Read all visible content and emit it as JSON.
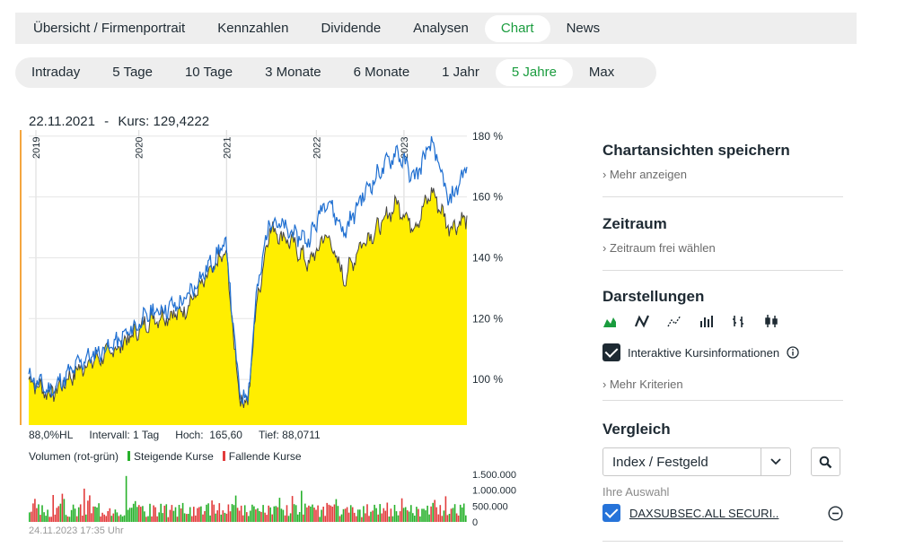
{
  "nav_tabs": [
    "Übersicht / Firmenportrait",
    "Kennzahlen",
    "Dividende",
    "Analysen",
    "Chart",
    "News"
  ],
  "active_nav_tab": "Chart",
  "range_tabs": [
    "Intraday",
    "5 Tage",
    "10 Tage",
    "3 Monate",
    "6 Monate",
    "1 Jahr",
    "5 Jahre",
    "Max"
  ],
  "active_range_tab": "5 Jahre",
  "chart_header": {
    "date": "22.11.2021",
    "separator": "-",
    "kurs_label": "Kurs: 129,4222"
  },
  "chart_data": [
    {
      "type": "area",
      "title": "22.11.2021 - Kurs: 129,4222",
      "year_labels": [
        "2019",
        "2020",
        "2021",
        "2022",
        "2023"
      ],
      "y_tick_labels": [
        "180 %",
        "160 %",
        "140 %",
        "120 %",
        "100 %"
      ],
      "ylim": [
        85,
        182
      ],
      "series": [
        {
          "name": "Kurs (yellow area)",
          "color": "#ffee00",
          "line_color": "#444444",
          "x": [
            0,
            5,
            12,
            20,
            28,
            35,
            40,
            45,
            48,
            50,
            52,
            55,
            60,
            64,
            68,
            72,
            76,
            80,
            84,
            88,
            92,
            96,
            100
          ],
          "values": [
            100,
            95,
            104,
            110,
            120,
            122,
            132,
            142,
            95,
            92,
            125,
            150,
            145,
            138,
            148,
            133,
            145,
            150,
            158,
            150,
            162,
            150,
            153
          ]
        },
        {
          "name": "DAXSUBSEC.ALL SECURI.. (blue line)",
          "color": "#1f6fd1",
          "x": [
            0,
            5,
            12,
            20,
            28,
            35,
            40,
            45,
            48,
            50,
            52,
            55,
            60,
            64,
            68,
            72,
            76,
            80,
            84,
            88,
            92,
            96,
            100
          ],
          "values": [
            101,
            96,
            106,
            112,
            122,
            125,
            135,
            145,
            96,
            94,
            128,
            153,
            148,
            146,
            160,
            148,
            160,
            168,
            175,
            166,
            178,
            158,
            170
          ]
        }
      ]
    },
    {
      "type": "bar",
      "title": "Volumen (rot-grün)",
      "y_tick_labels": [
        "1.500.000",
        "1.000.000",
        "500.000",
        "0"
      ],
      "ylim": [
        0,
        1700000
      ],
      "legend": [
        "Steigende Kurse",
        "Fallende Kurse"
      ],
      "series_colors": {
        "steigend": "#27b12b",
        "fallend": "#e23c3c"
      }
    }
  ],
  "info": {
    "hl": "88,0%HL",
    "intervall": "Intervall: 1 Tag",
    "hoch_label": "Hoch:",
    "hoch_value": "165,60",
    "tief": "Tief: 88,0711"
  },
  "volume_legend": {
    "label": "Volumen (rot-grün)",
    "rising": "Steigende Kurse",
    "falling": "Fallende Kurse"
  },
  "timestamp": "24.11.2023 17:35 Uhr",
  "sidebar": {
    "save_title": "Chartansichten speichern",
    "save_link": "Mehr anzeigen",
    "zeitraum_title": "Zeitraum",
    "zeitraum_link": "Zeitraum frei wählen",
    "darstellungen_title": "Darstellungen",
    "interaktive_label": "Interaktive Kursinformationen",
    "mehr_kriterien": "Mehr Kriterien",
    "vergleich_title": "Vergleich",
    "vergleich_select": "Index / Festgeld",
    "ihre_auswahl": "Ihre Auswahl",
    "selection": "DAXSUBSEC.ALL SECURI.."
  },
  "colors": {
    "accent": "#1a9c3e",
    "area": "#ffee00",
    "compare": "#1f6fd1"
  }
}
